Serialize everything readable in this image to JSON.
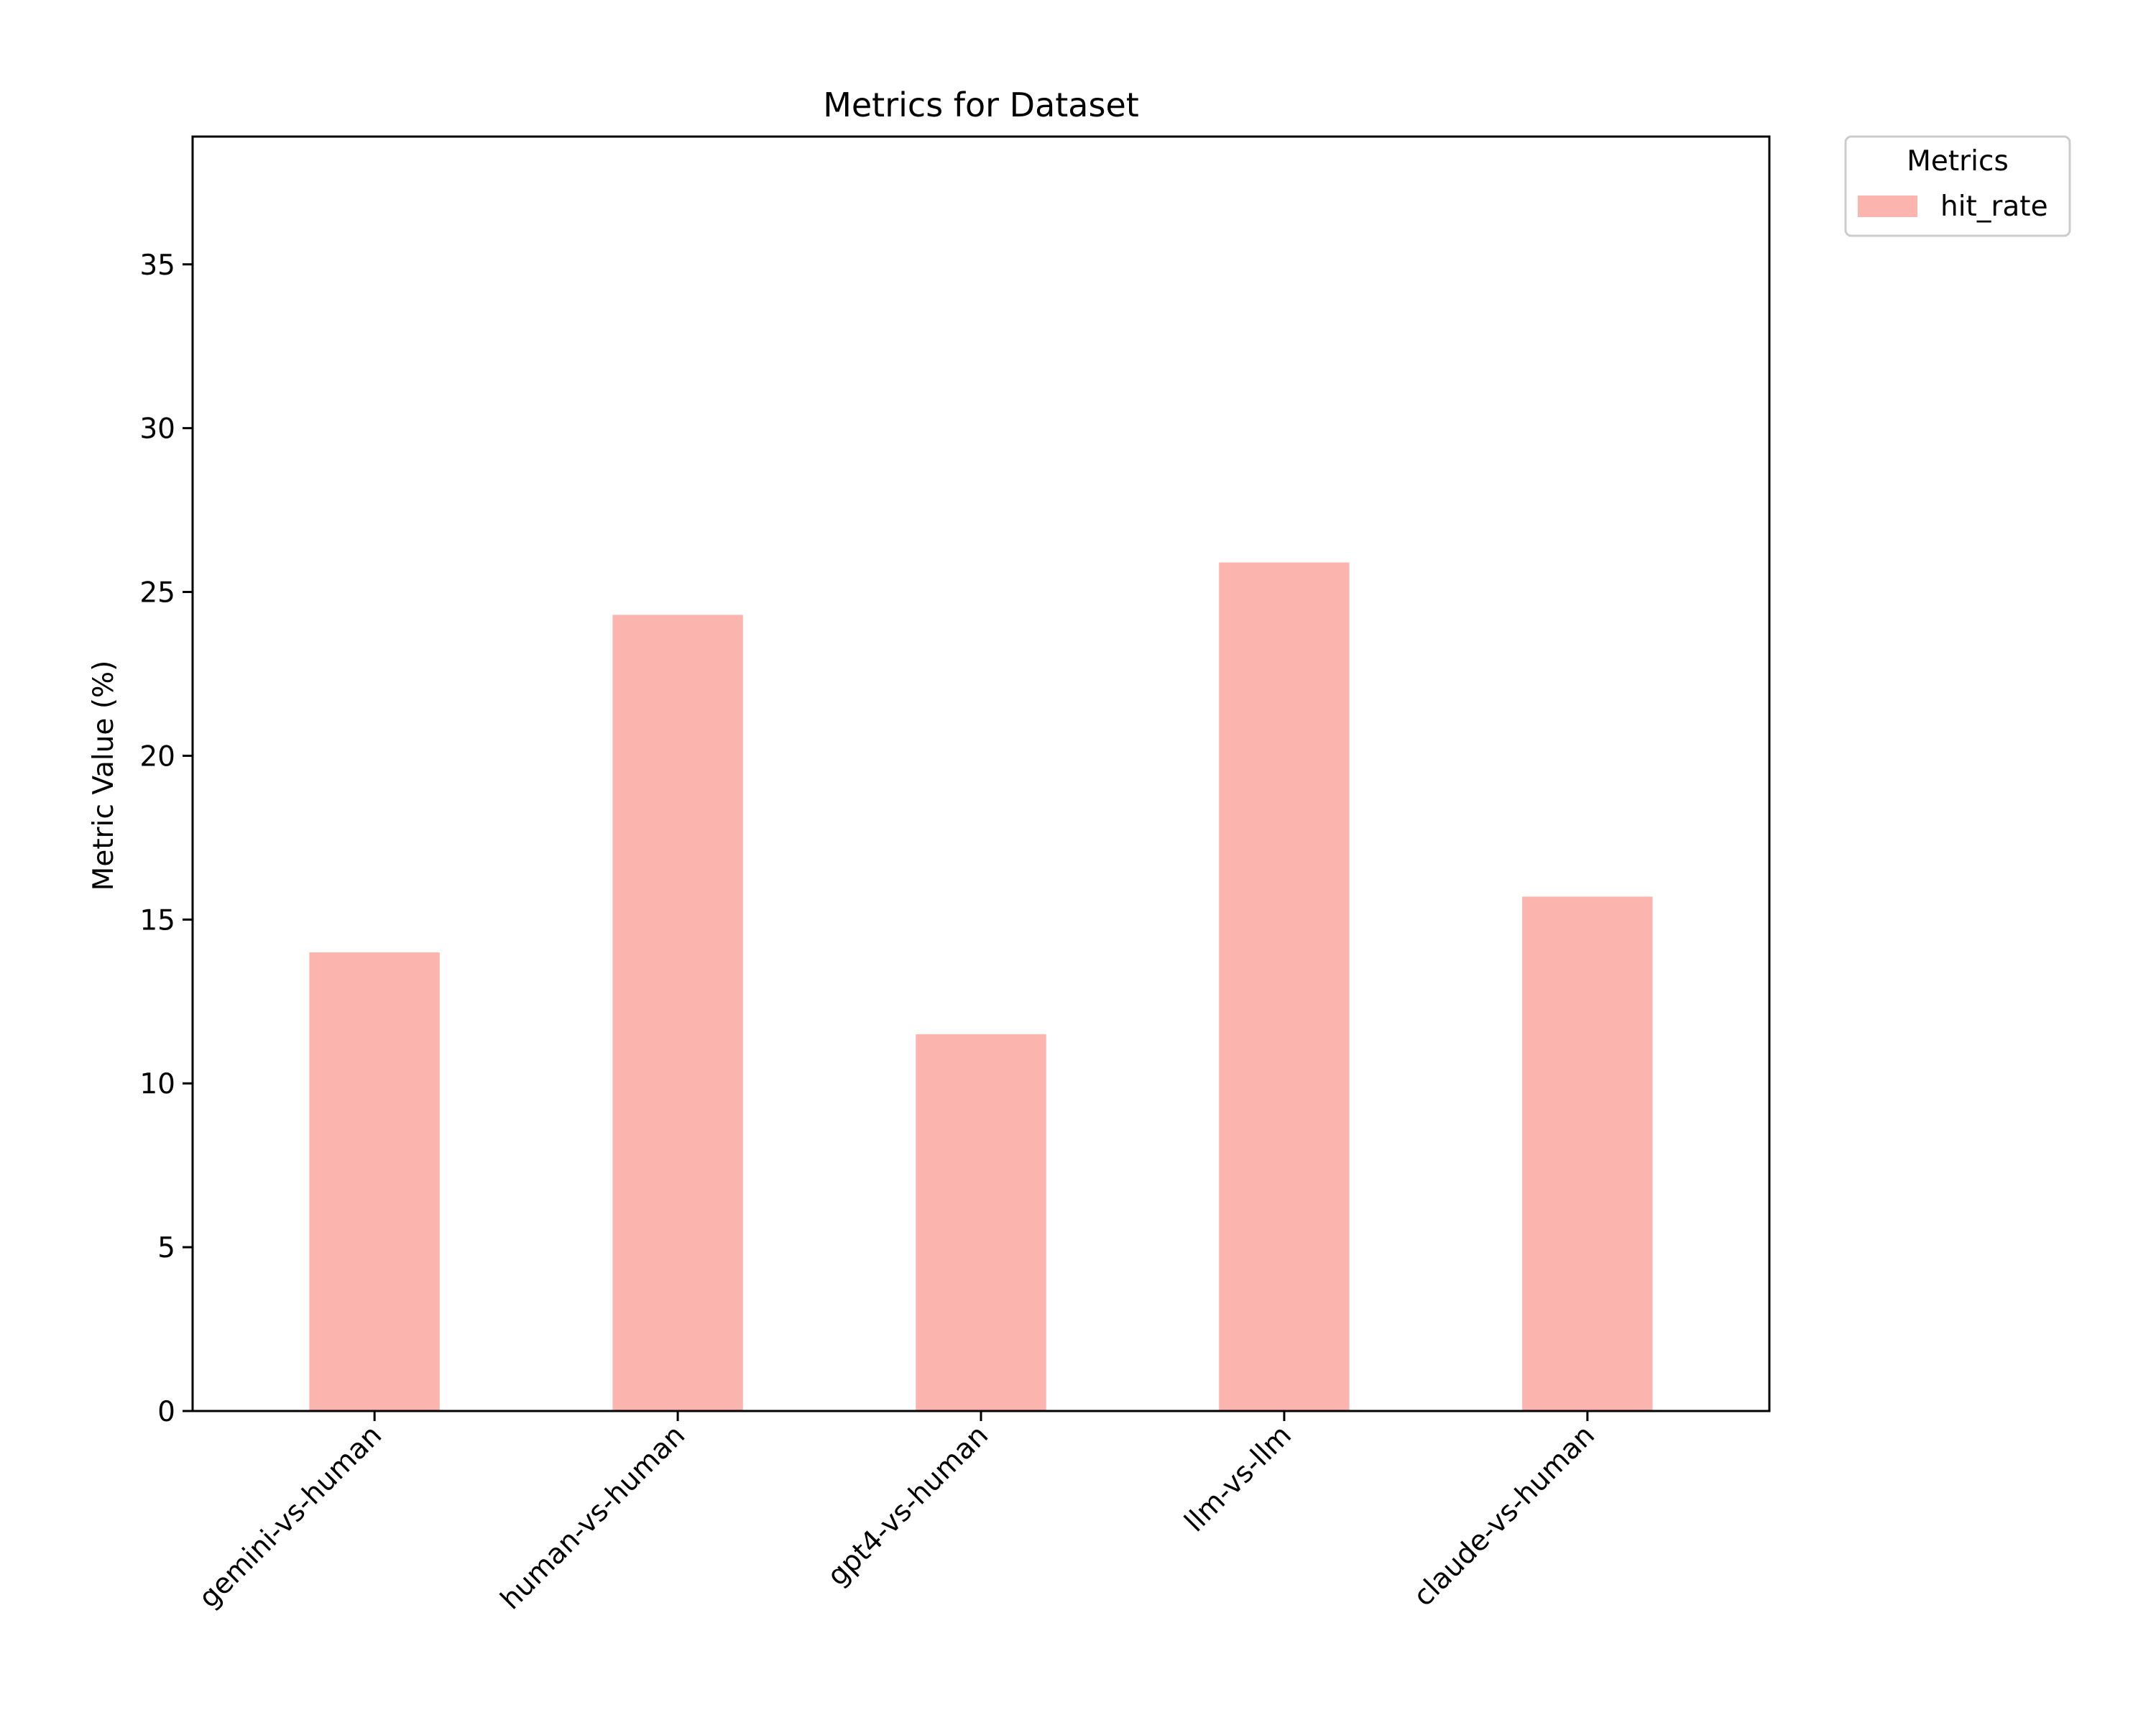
{
  "chart_data": {
    "type": "bar",
    "title": "Metrics for Dataset",
    "xlabel": "",
    "ylabel": "Metric Value (%)",
    "categories": [
      "gemini-vs-human",
      "human-vs-human",
      "gpt4-vs-human",
      "llm-vs-llm",
      "claude-vs-human"
    ],
    "series": [
      {
        "name": "hit_rate",
        "values": [
          14.0,
          24.3,
          11.5,
          25.9,
          15.7
        ],
        "color": "#fbb4ae"
      }
    ],
    "ylim": [
      0,
      38.9
    ],
    "yticks": [
      0,
      5,
      10,
      15,
      20,
      25,
      30,
      35
    ],
    "grid": false,
    "legend": {
      "title": "Metrics",
      "placement": "outside-top-right"
    }
  }
}
